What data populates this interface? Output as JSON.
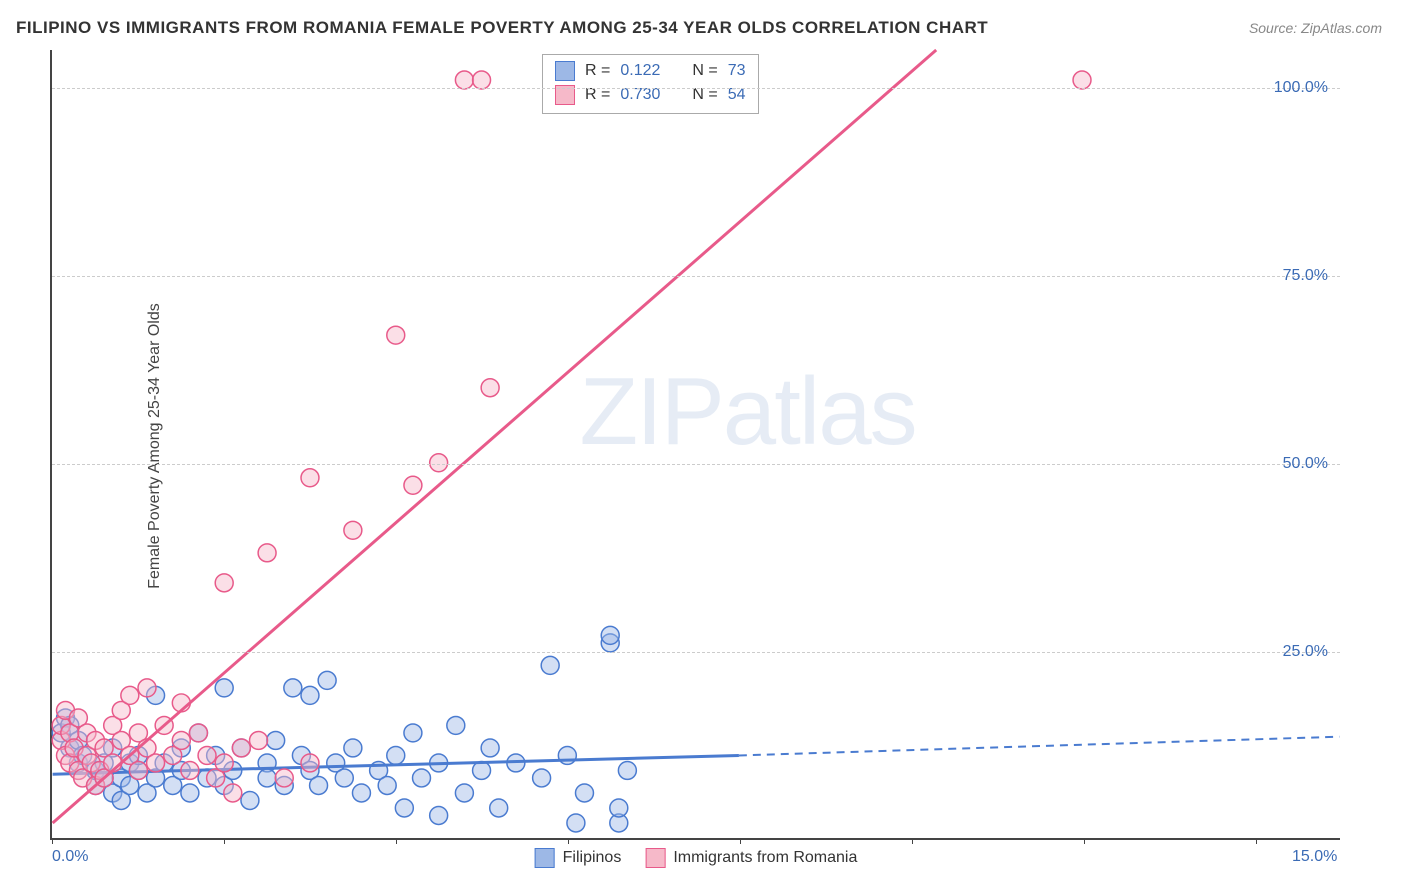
{
  "title": "FILIPINO VS IMMIGRANTS FROM ROMANIA FEMALE POVERTY AMONG 25-34 YEAR OLDS CORRELATION CHART",
  "source": "Source: ZipAtlas.com",
  "ylabel": "Female Poverty Among 25-34 Year Olds",
  "watermark_a": "ZIP",
  "watermark_b": "atlas",
  "chart": {
    "type": "scatter-with-regression",
    "background_color": "#ffffff",
    "grid_color": "#cccccc",
    "axis_color": "#444444",
    "tick_label_color": "#3b6bb5",
    "label_fontsize": 16,
    "title_fontsize": 17,
    "xlim": [
      0,
      15
    ],
    "ylim": [
      0,
      105
    ],
    "x_ticks": [
      0,
      2,
      4,
      6,
      8,
      10,
      12,
      14
    ],
    "x_tick_labels": {
      "0": "0.0%",
      "15": "15.0%"
    },
    "y_ticks": [
      25,
      50,
      75,
      100
    ],
    "y_tick_labels": {
      "25": "25.0%",
      "50": "50.0%",
      "75": "75.0%",
      "100": "100.0%"
    },
    "marker_radius": 9,
    "marker_opacity": 0.45,
    "series": [
      {
        "name": "Filipinos",
        "color_fill": "#9db8e6",
        "color_stroke": "#4a7bd0",
        "r_label": "R =",
        "r_value": "0.122",
        "n_label": "N =",
        "n_value": "73",
        "regression": {
          "x1": 0,
          "y1": 8.5,
          "x2": 8.0,
          "y2": 11.0,
          "dash_x2": 15.0,
          "dash_y2": 13.5,
          "width": 3
        },
        "points": [
          [
            0.1,
            14
          ],
          [
            0.15,
            16
          ],
          [
            0.2,
            12
          ],
          [
            0.2,
            15
          ],
          [
            0.3,
            13
          ],
          [
            0.3,
            10
          ],
          [
            0.35,
            11
          ],
          [
            0.5,
            7
          ],
          [
            0.5,
            9
          ],
          [
            0.6,
            8
          ],
          [
            0.6,
            10
          ],
          [
            0.7,
            6
          ],
          [
            0.7,
            12
          ],
          [
            0.8,
            8
          ],
          [
            0.8,
            5
          ],
          [
            0.9,
            10
          ],
          [
            0.9,
            7
          ],
          [
            1.0,
            9
          ],
          [
            1.0,
            11
          ],
          [
            1.1,
            6
          ],
          [
            1.2,
            19
          ],
          [
            1.2,
            8
          ],
          [
            1.3,
            10
          ],
          [
            1.4,
            7
          ],
          [
            1.5,
            12
          ],
          [
            1.5,
            9
          ],
          [
            1.6,
            6
          ],
          [
            1.7,
            14
          ],
          [
            1.8,
            8
          ],
          [
            1.9,
            11
          ],
          [
            2.0,
            7
          ],
          [
            2.0,
            20
          ],
          [
            2.1,
            9
          ],
          [
            2.2,
            12
          ],
          [
            2.3,
            5
          ],
          [
            2.5,
            10
          ],
          [
            2.5,
            8
          ],
          [
            2.6,
            13
          ],
          [
            2.7,
            7
          ],
          [
            2.8,
            20
          ],
          [
            2.9,
            11
          ],
          [
            3.0,
            9
          ],
          [
            3.0,
            19
          ],
          [
            3.1,
            7
          ],
          [
            3.2,
            21
          ],
          [
            3.3,
            10
          ],
          [
            3.4,
            8
          ],
          [
            3.5,
            12
          ],
          [
            3.6,
            6
          ],
          [
            3.8,
            9
          ],
          [
            3.9,
            7
          ],
          [
            4.0,
            11
          ],
          [
            4.1,
            4
          ],
          [
            4.2,
            14
          ],
          [
            4.3,
            8
          ],
          [
            4.5,
            10
          ],
          [
            4.5,
            3
          ],
          [
            4.7,
            15
          ],
          [
            4.8,
            6
          ],
          [
            5.0,
            9
          ],
          [
            5.1,
            12
          ],
          [
            5.2,
            4
          ],
          [
            5.4,
            10
          ],
          [
            5.7,
            8
          ],
          [
            5.8,
            23
          ],
          [
            6.0,
            11
          ],
          [
            6.1,
            2
          ],
          [
            6.2,
            6
          ],
          [
            6.5,
            26
          ],
          [
            6.5,
            27
          ],
          [
            6.6,
            2
          ],
          [
            6.6,
            4
          ],
          [
            6.7,
            9
          ]
        ]
      },
      {
        "name": "Immigrants from Romania",
        "color_fill": "#f6b9c9",
        "color_stroke": "#e85a8a",
        "r_label": "R =",
        "r_value": "0.730",
        "n_label": "N =",
        "n_value": "54",
        "regression": {
          "x1": 0,
          "y1": 2,
          "x2": 10.3,
          "y2": 105,
          "width": 3
        },
        "points": [
          [
            0.1,
            13
          ],
          [
            0.1,
            15
          ],
          [
            0.15,
            11
          ],
          [
            0.15,
            17
          ],
          [
            0.2,
            10
          ],
          [
            0.2,
            14
          ],
          [
            0.25,
            12
          ],
          [
            0.3,
            9
          ],
          [
            0.3,
            16
          ],
          [
            0.35,
            8
          ],
          [
            0.4,
            11
          ],
          [
            0.4,
            14
          ],
          [
            0.45,
            10
          ],
          [
            0.5,
            7
          ],
          [
            0.5,
            13
          ],
          [
            0.55,
            9
          ],
          [
            0.6,
            12
          ],
          [
            0.6,
            8
          ],
          [
            0.7,
            15
          ],
          [
            0.7,
            10
          ],
          [
            0.8,
            17
          ],
          [
            0.8,
            13
          ],
          [
            0.9,
            11
          ],
          [
            0.9,
            19
          ],
          [
            1.0,
            9
          ],
          [
            1.0,
            14
          ],
          [
            1.1,
            20
          ],
          [
            1.1,
            12
          ],
          [
            1.2,
            10
          ],
          [
            1.3,
            15
          ],
          [
            1.4,
            11
          ],
          [
            1.5,
            18
          ],
          [
            1.5,
            13
          ],
          [
            1.6,
            9
          ],
          [
            1.7,
            14
          ],
          [
            1.8,
            11
          ],
          [
            1.9,
            8
          ],
          [
            2.0,
            34
          ],
          [
            2.0,
            10
          ],
          [
            2.1,
            6
          ],
          [
            2.2,
            12
          ],
          [
            2.4,
            13
          ],
          [
            2.5,
            38
          ],
          [
            2.7,
            8
          ],
          [
            3.0,
            48
          ],
          [
            3.0,
            10
          ],
          [
            3.5,
            41
          ],
          [
            4.0,
            67
          ],
          [
            4.2,
            47
          ],
          [
            4.5,
            50
          ],
          [
            4.8,
            101
          ],
          [
            5.0,
            101
          ],
          [
            5.1,
            60
          ],
          [
            12.0,
            101
          ]
        ]
      }
    ],
    "legend_bottom": [
      {
        "label": "Filipinos",
        "fill": "#9db8e6",
        "stroke": "#4a7bd0"
      },
      {
        "label": "Immigrants from Romania",
        "fill": "#f6b9c9",
        "stroke": "#e85a8a"
      }
    ]
  }
}
